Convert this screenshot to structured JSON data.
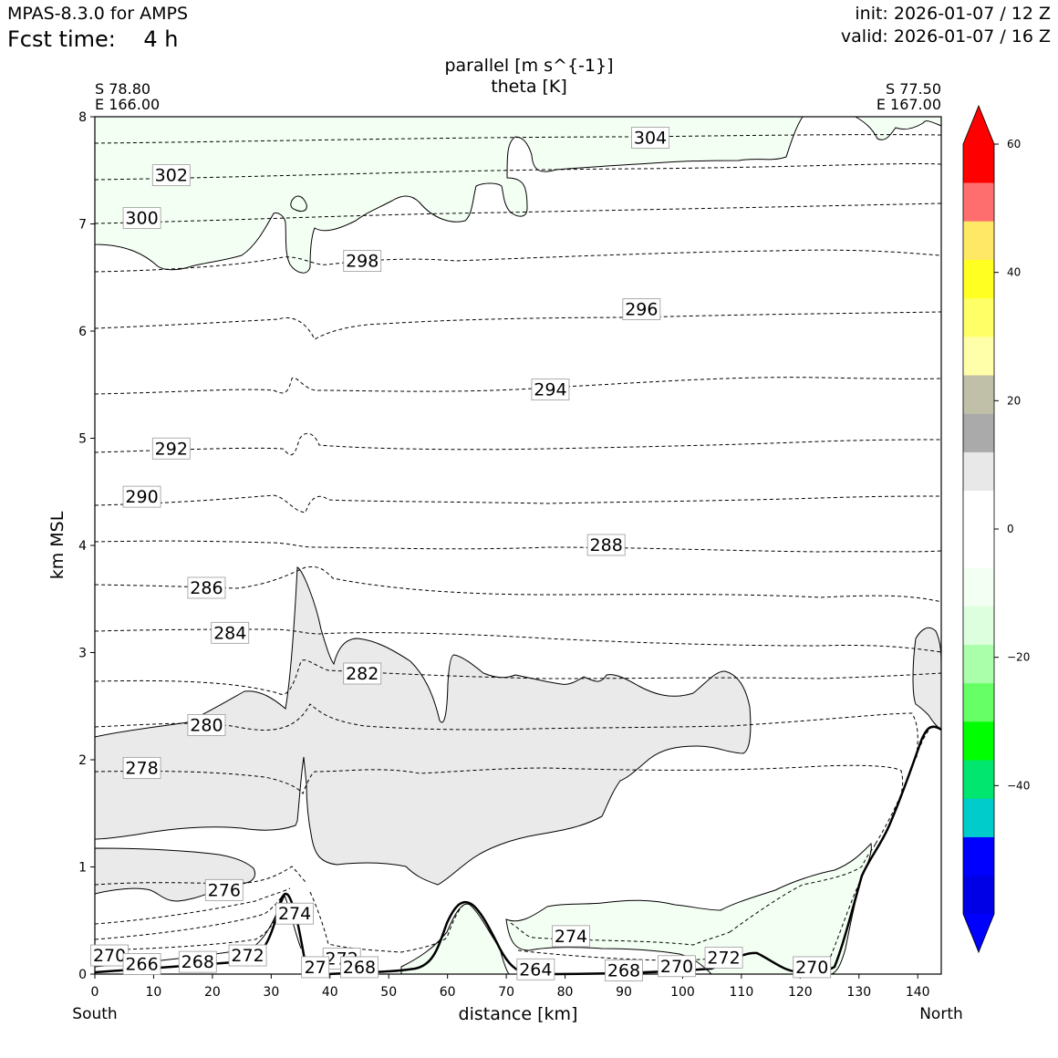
{
  "header": {
    "model": "MPAS-8.3.0 for AMPS",
    "fcst_label": "Fcst time:",
    "fcst_value": "4 h",
    "init": "init: 2026-01-07 / 12 Z",
    "valid": "valid: 2026-01-07 / 16 Z"
  },
  "chart_data": {
    "type": "cross-section",
    "title_line1": "parallel [m s^{-1}]",
    "title_line2": "theta [K]",
    "start_point": {
      "lat": "S 78.80",
      "lon": "E 166.00"
    },
    "end_point": {
      "lat": "S 77.50",
      "lon": "E 167.00"
    },
    "xlabel": "distance [km]",
    "ylabel": "km MSL",
    "x_left_label": "South",
    "x_right_label": "North",
    "xlim": [
      0,
      144
    ],
    "ylim": [
      0,
      8
    ],
    "xticks": [
      "0",
      "10",
      "20",
      "30",
      "40",
      "50",
      "60",
      "70",
      "80",
      "90",
      "100",
      "110",
      "120",
      "130",
      "140"
    ],
    "yticks": [
      "0",
      "1",
      "2",
      "3",
      "4",
      "5",
      "6",
      "7",
      "8"
    ],
    "theta_labels": [
      {
        "text": "304",
        "x": 94.5,
        "y": 7.8
      },
      {
        "text": "302",
        "x": 13,
        "y": 7.45
      },
      {
        "text": "300",
        "x": 8,
        "y": 7.05
      },
      {
        "text": "298",
        "x": 45.5,
        "y": 6.65
      },
      {
        "text": "296",
        "x": 93,
        "y": 6.2
      },
      {
        "text": "294",
        "x": 77.5,
        "y": 5.45
      },
      {
        "text": "292",
        "x": 13,
        "y": 4.9
      },
      {
        "text": "290",
        "x": 8,
        "y": 4.45
      },
      {
        "text": "288",
        "x": 87,
        "y": 4.0
      },
      {
        "text": "286",
        "x": 19,
        "y": 3.6
      },
      {
        "text": "284",
        "x": 23,
        "y": 3.18
      },
      {
        "text": "282",
        "x": 45.5,
        "y": 2.8
      },
      {
        "text": "280",
        "x": 19,
        "y": 2.32
      },
      {
        "text": "278",
        "x": 8,
        "y": 1.92
      },
      {
        "text": "276",
        "x": 22,
        "y": 0.78
      },
      {
        "text": "274",
        "x": 34,
        "y": 0.56
      },
      {
        "text": "274",
        "x": 81,
        "y": 0.35
      },
      {
        "text": "272",
        "x": 26,
        "y": 0.17
      },
      {
        "text": "272",
        "x": 42,
        "y": 0.14
      },
      {
        "text": "272",
        "x": 107,
        "y": 0.15
      },
      {
        "text": "270",
        "x": 2.5,
        "y": 0.17
      },
      {
        "text": "270",
        "x": 99,
        "y": 0.07
      },
      {
        "text": "270",
        "x": 122,
        "y": 0.06
      },
      {
        "text": "268",
        "x": 17.5,
        "y": 0.11
      },
      {
        "text": "268",
        "x": 45,
        "y": 0.06
      },
      {
        "text": "268",
        "x": 90,
        "y": 0.03
      },
      {
        "text": "266",
        "x": 8,
        "y": 0.09
      },
      {
        "text": "264",
        "x": 75,
        "y": 0.04
      },
      {
        "text": "27",
        "x": 37.5,
        "y": 0.06
      }
    ],
    "colorbar": {
      "tick_labels": [
        "60",
        "40",
        "20",
        "0",
        "−20",
        "−40"
      ],
      "tick_values": [
        60,
        40,
        20,
        0,
        -20,
        -40
      ],
      "range": [
        -60,
        60
      ],
      "colors": [
        "#0000ff",
        "#0000e6",
        "#0000ff",
        "#00cccc",
        "#00e66e",
        "#00ff00",
        "#66ff66",
        "#aaffaa",
        "#ddffdd",
        "#f4fff4",
        "#ffffff",
        "#ffffff",
        "#e8e8e8",
        "#aaaaaa",
        "#c0c0a8",
        "#ffffaa",
        "#ffff66",
        "#ffff22",
        "#ffe866",
        "#ff6e6e",
        "#ff0000",
        "#ff0000"
      ]
    }
  }
}
